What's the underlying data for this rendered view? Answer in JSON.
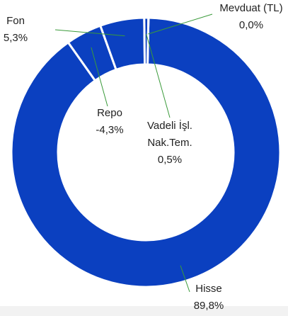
{
  "chart_data": {
    "type": "donut",
    "categories": [
      "Hisse",
      "Repo",
      "Fon",
      "Vadeli İşl. Nak.Tem.",
      "Mevduat (TL)"
    ],
    "values": [
      89.8,
      -4.3,
      5.3,
      0.5,
      0.0
    ],
    "value_labels": [
      "89,8%",
      "-4,3%",
      "5,3%",
      "0,5%",
      "0,0%"
    ],
    "color": "#0b40c0"
  }
}
